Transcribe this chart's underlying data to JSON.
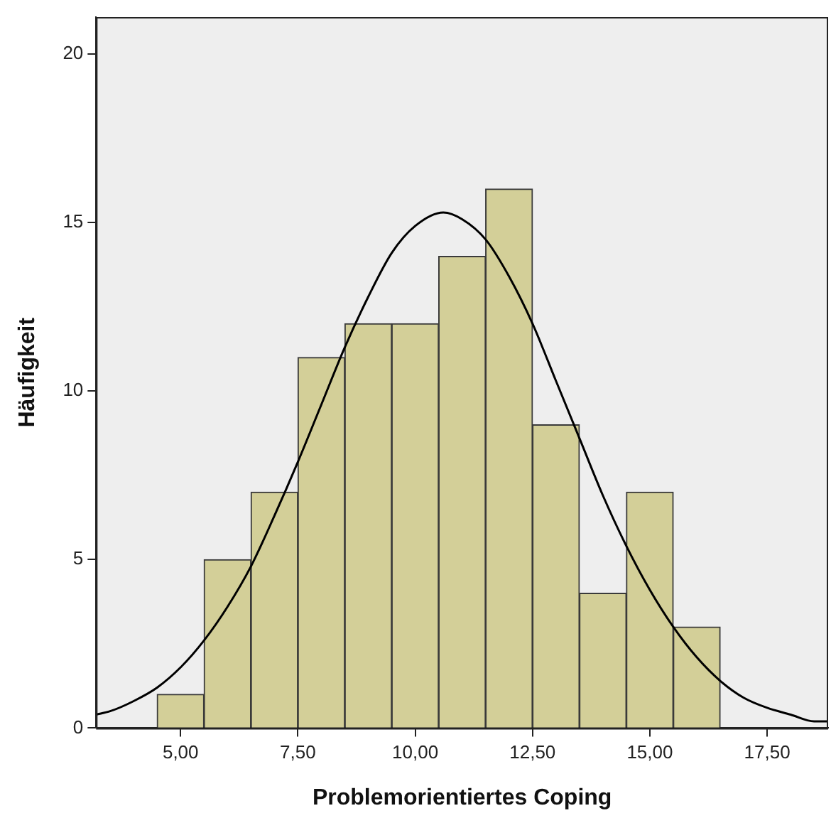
{
  "chart_data": {
    "type": "histogram",
    "xlabel": "Problemorientiertes Coping",
    "ylabel": "Häufigkeit",
    "series": [
      {
        "color": "#d3cf98",
        "bins": [
          4.5,
          5.5,
          6.5,
          7.5,
          8.5,
          9.5,
          10.5,
          11.5,
          12.5,
          13.5,
          14.5,
          15.5,
          16.5
        ],
        "values": [
          1,
          5,
          7,
          11,
          12,
          12,
          14,
          16,
          9,
          4,
          7,
          3
        ]
      },
      {
        "type": "line",
        "color": "#000000",
        "x": [
          3.2,
          3.5,
          4,
          4.5,
          5,
          5.5,
          6,
          6.5,
          7,
          7.5,
          8,
          8.5,
          9,
          9.5,
          10,
          10.6,
          11,
          11.5,
          12,
          12.5,
          13,
          13.5,
          14,
          14.5,
          15,
          15.5,
          16,
          16.5,
          17,
          17.5,
          18,
          18.5,
          18.8
        ],
        "values": [
          0.4,
          0.5,
          0.8,
          1.2,
          1.8,
          2.6,
          3.6,
          4.8,
          6.3,
          7.9,
          9.6,
          11.3,
          12.8,
          14.1,
          14.9,
          15.3,
          15.1,
          14.5,
          13.4,
          12,
          10.3,
          8.6,
          6.9,
          5.4,
          4.1,
          3,
          2.1,
          1.4,
          0.9,
          0.6,
          0.4,
          0.2,
          0.2
        ]
      }
    ],
    "xlim": [
      3.2,
      18.8
    ],
    "xticks": [
      {
        "value": 5,
        "label": "5,00"
      },
      {
        "value": 7.5,
        "label": "7,50"
      },
      {
        "value": 10,
        "label": "10,00"
      },
      {
        "value": 12.5,
        "label": "12,50"
      },
      {
        "value": 15,
        "label": "15,00"
      },
      {
        "value": 17.5,
        "label": "17,50"
      }
    ],
    "ylim": [
      0,
      21.1
    ],
    "yticks": [
      0,
      5,
      10,
      15,
      20
    ],
    "grid": false,
    "legend": false
  }
}
